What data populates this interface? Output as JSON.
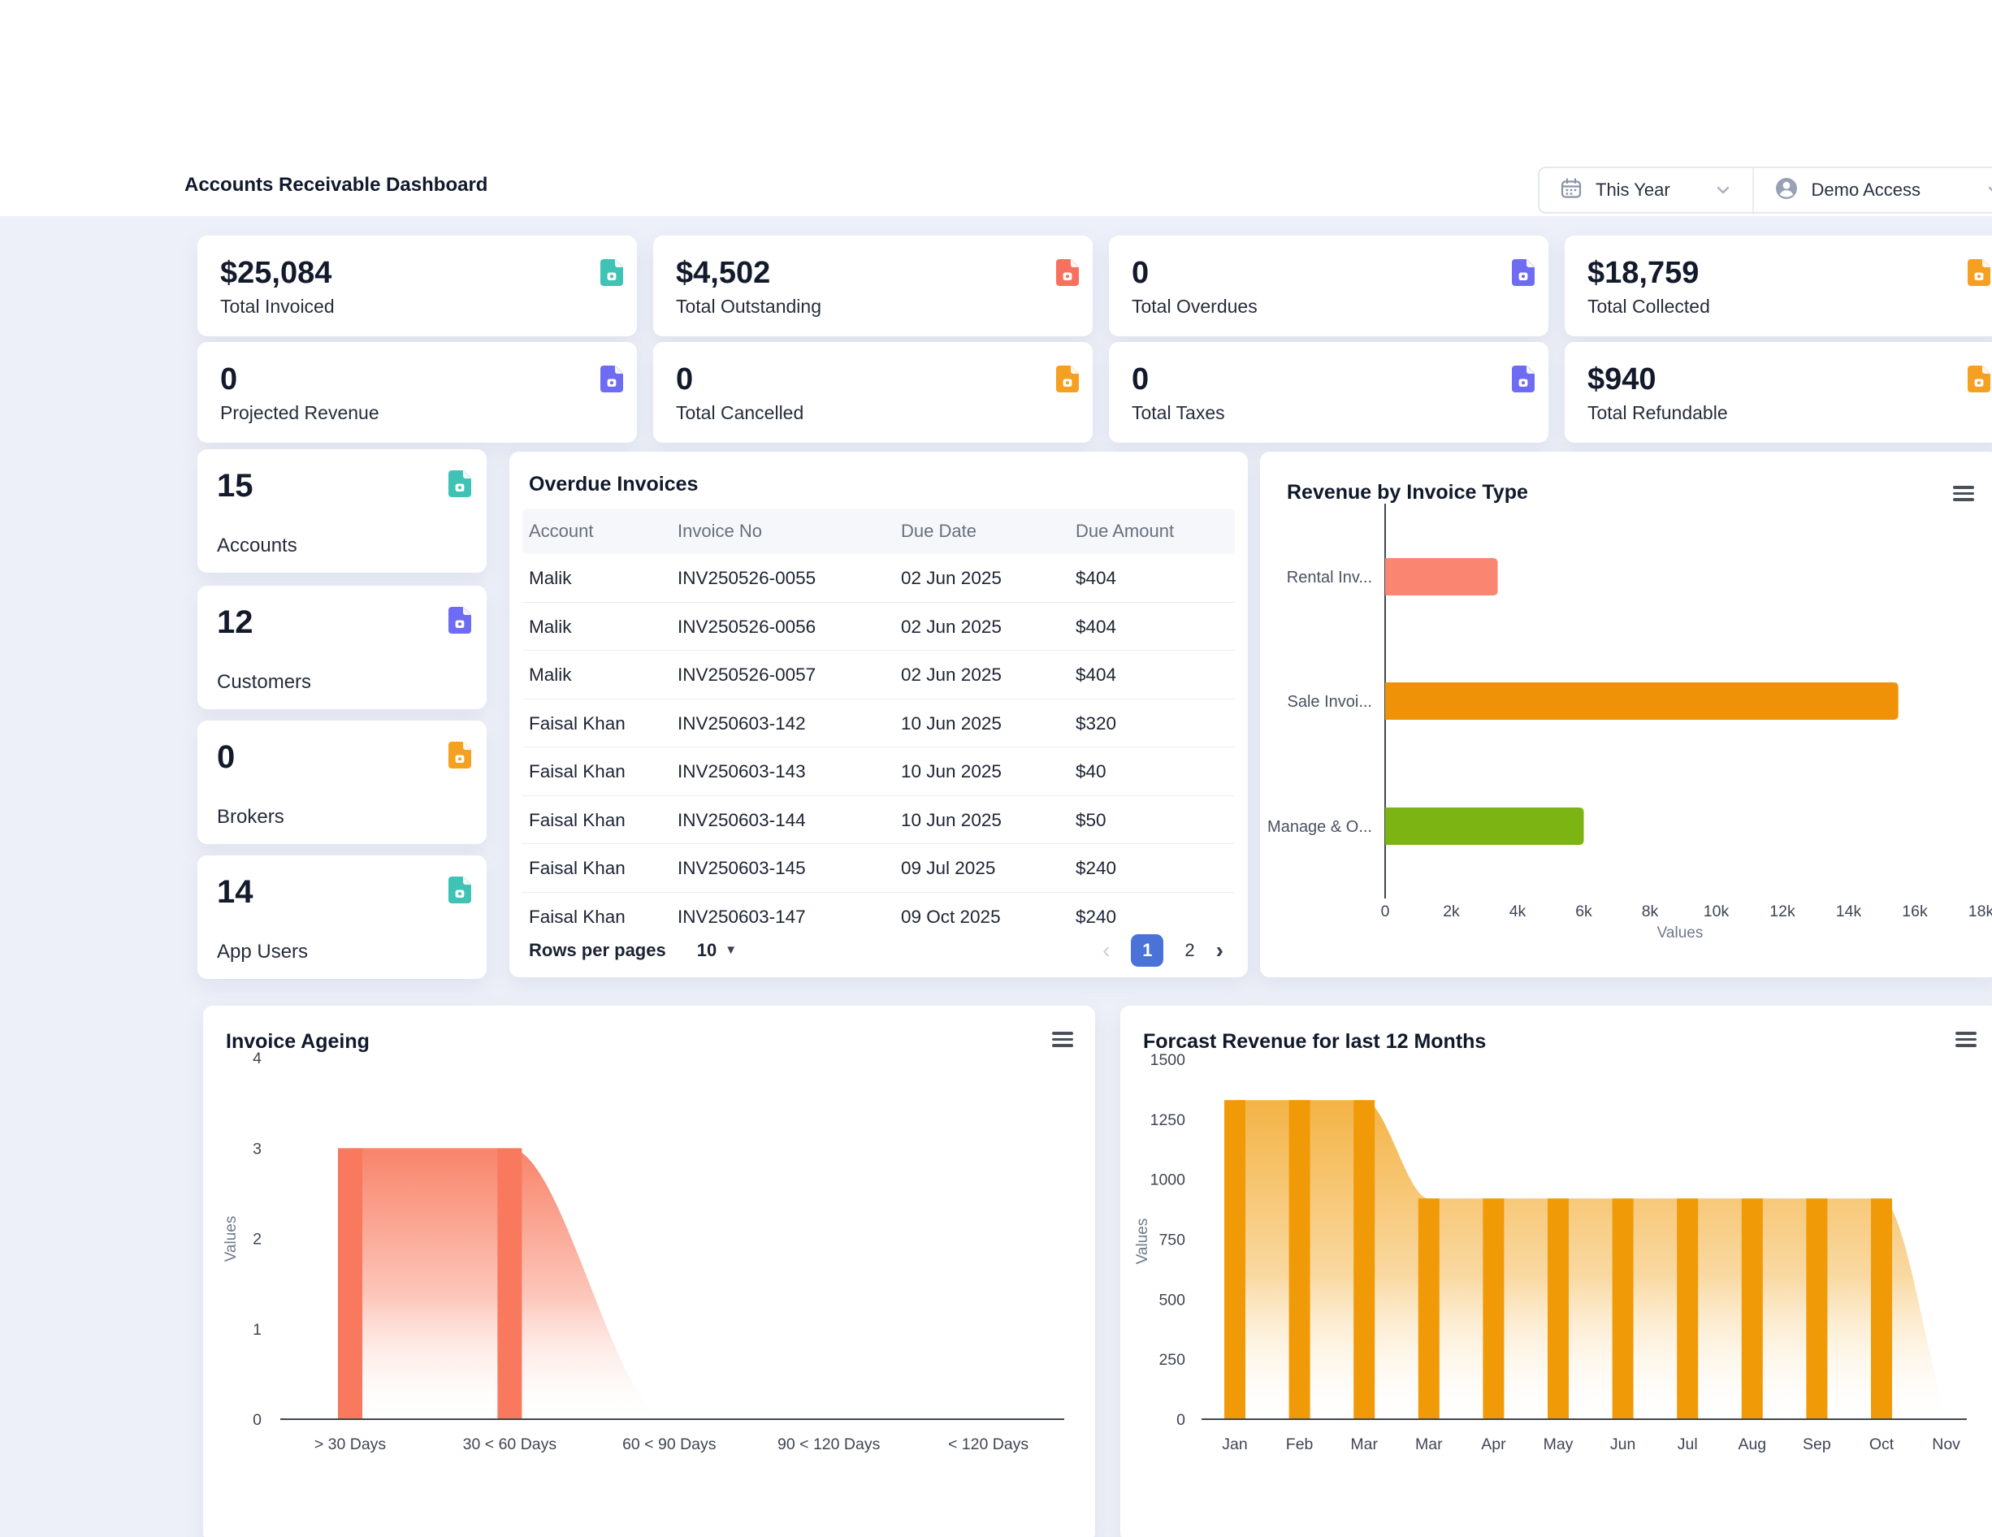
{
  "page": {
    "title": "Accounts Receivable Dashboard",
    "background": "#EDF0F8"
  },
  "header_controls": {
    "period": {
      "icon": "calendar-icon",
      "label": "This Year"
    },
    "access": {
      "icon": "user-avatar-icon",
      "label": "Demo Access"
    }
  },
  "colors": {
    "teal": "#3EC3B4",
    "salmon": "#F8705E",
    "indigo": "#6E6CF2",
    "orange": "#F5A021",
    "pagination_active": "#4A72D8"
  },
  "stat_cards": [
    {
      "value": "$25,084",
      "label": "Total Invoiced",
      "icon_color": "#3EC3B4"
    },
    {
      "value": "$4,502",
      "label": "Total Outstanding",
      "icon_color": "#F8705E"
    },
    {
      "value": "0",
      "label": "Total Overdues",
      "icon_color": "#6E6CF2"
    },
    {
      "value": "$18,759",
      "label": "Total Collected",
      "icon_color": "#F5A021"
    },
    {
      "value": "0",
      "label": "Projected Revenue",
      "icon_color": "#6E6CF2"
    },
    {
      "value": "0",
      "label": "Total Cancelled",
      "icon_color": "#F5A021"
    },
    {
      "value": "0",
      "label": "Total Taxes",
      "icon_color": "#6E6CF2"
    },
    {
      "value": "$940",
      "label": "Total Refundable",
      "icon_color": "#F5A021"
    }
  ],
  "entity_cards": [
    {
      "value": "15",
      "label": "Accounts",
      "icon_color": "#3EC3B4"
    },
    {
      "value": "12",
      "label": "Customers",
      "icon_color": "#6E6CF2"
    },
    {
      "value": "0",
      "label": "Brokers",
      "icon_color": "#F5A021"
    },
    {
      "value": "14",
      "label": "App Users",
      "icon_color": "#3EC3B4"
    }
  ],
  "overdue_invoices": {
    "title": "Overdue Invoices",
    "columns": [
      "Account",
      "Invoice No",
      "Due Date",
      "Due Amount"
    ],
    "rows": [
      {
        "account": "Malik",
        "invoice_no": "INV250526-0055",
        "due_date": "02 Jun 2025",
        "due_amount": "$404"
      },
      {
        "account": "Malik",
        "invoice_no": "INV250526-0056",
        "due_date": "02 Jun 2025",
        "due_amount": "$404"
      },
      {
        "account": "Malik",
        "invoice_no": "INV250526-0057",
        "due_date": "02 Jun 2025",
        "due_amount": "$404"
      },
      {
        "account": "Faisal Khan",
        "invoice_no": "INV250603-142",
        "due_date": "10 Jun 2025",
        "due_amount": "$320"
      },
      {
        "account": "Faisal Khan",
        "invoice_no": "INV250603-143",
        "due_date": "10 Jun 2025",
        "due_amount": "$40"
      },
      {
        "account": "Faisal Khan",
        "invoice_no": "INV250603-144",
        "due_date": "10 Jun 2025",
        "due_amount": "$50"
      },
      {
        "account": "Faisal Khan",
        "invoice_no": "INV250603-145",
        "due_date": "09 Jul 2025",
        "due_amount": "$240"
      },
      {
        "account": "Faisal Khan",
        "invoice_no": "INV250603-147",
        "due_date": "09 Oct 2025",
        "due_amount": "$240"
      }
    ],
    "pagination": {
      "rows_per_page_label": "Rows per pages",
      "rows_per_page": "10",
      "prev": "‹",
      "pages": [
        "1",
        "2"
      ],
      "active_page": "1",
      "next": "›"
    }
  },
  "chart_data": [
    {
      "type": "bar",
      "orientation": "horizontal",
      "title": "Revenue by Invoice Type",
      "categories": [
        "Rental Inv...",
        "Sale Invoi...",
        "Manage & O..."
      ],
      "values": [
        3400,
        15500,
        6000
      ],
      "bar_colors": [
        "#FA8672",
        "#F09208",
        "#7CB414"
      ],
      "xlabel": "Values",
      "xlim": [
        0,
        18000
      ],
      "xticks": [
        "0",
        "2k",
        "4k",
        "6k",
        "8k",
        "10k",
        "12k",
        "14k",
        "16k",
        "18k"
      ],
      "grid": false,
      "legend": false
    },
    {
      "type": "area",
      "title": "Invoice Ageing",
      "categories": [
        "> 30 Days",
        "30 < 60 Days",
        "60 < 90 Days",
        "90 < 120 Days",
        "< 120 Days"
      ],
      "values": [
        3,
        3,
        0,
        0,
        0
      ],
      "ylabel": "Values",
      "ylim": [
        0,
        4
      ],
      "yticks": [
        0,
        1,
        2,
        3,
        4
      ],
      "color": "#F8795D",
      "grid": false,
      "legend": false
    },
    {
      "type": "area",
      "title": "Forcast Revenue for last 12 Months",
      "categories": [
        "Jan",
        "Feb",
        "Mar",
        "Mar",
        "Apr",
        "May",
        "Jun",
        "Jul",
        "Aug",
        "Sep",
        "Oct",
        "Nov"
      ],
      "values": [
        1330,
        1330,
        1330,
        920,
        920,
        920,
        920,
        920,
        920,
        920,
        920,
        0
      ],
      "ylabel": "Values",
      "ylim": [
        0,
        1500
      ],
      "yticks": [
        0,
        250,
        500,
        750,
        1000,
        1250,
        1500
      ],
      "color": "#F09A08",
      "grid": false,
      "legend": false
    }
  ]
}
